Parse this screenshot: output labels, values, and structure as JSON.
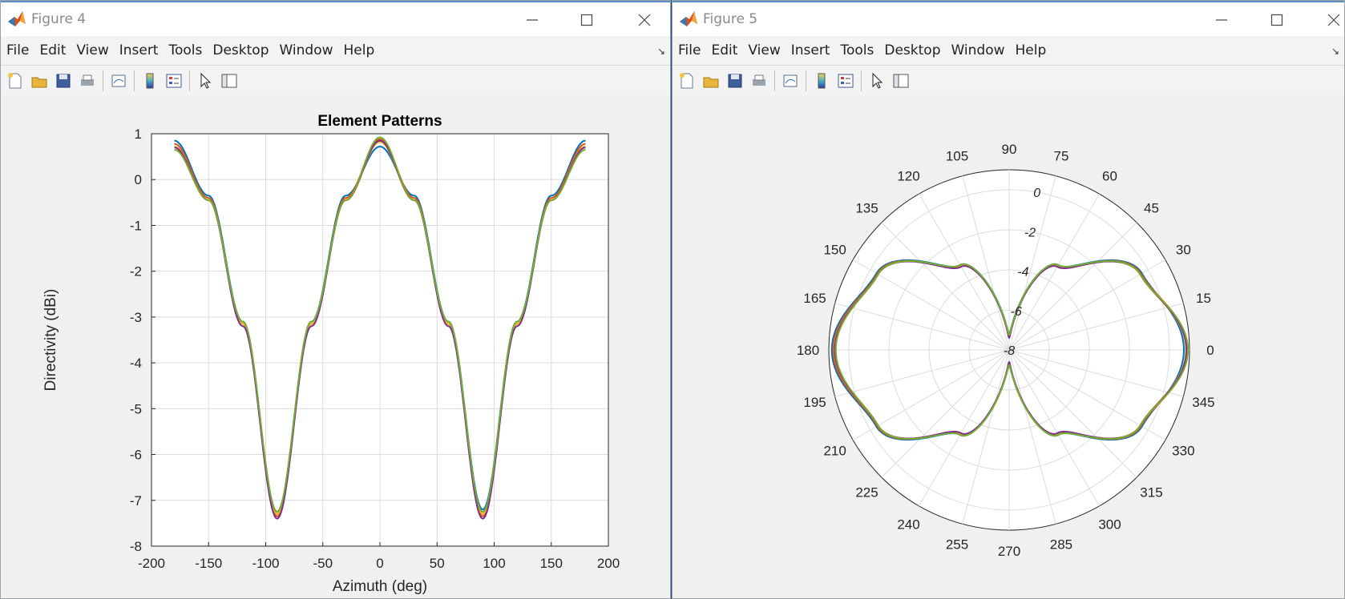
{
  "windows": [
    {
      "title": "Figure 4",
      "menu": [
        "File",
        "Edit",
        "View",
        "Insert",
        "Tools",
        "Desktop",
        "Window",
        "Help"
      ]
    },
    {
      "title": "Figure 5",
      "menu": [
        "File",
        "Edit",
        "View",
        "Insert",
        "Tools",
        "Desktop",
        "Window",
        "Help"
      ]
    }
  ],
  "toolbar_icons": [
    "new-figure-icon",
    "open-file-icon",
    "save-icon",
    "print-icon",
    "link-plot-icon",
    "colorbar-icon",
    "legend-icon",
    "pointer-icon",
    "property-editor-icon"
  ],
  "colors": [
    "#0072BD",
    "#D95319",
    "#EDB120",
    "#7E2F8E",
    "#77AC30"
  ],
  "chart_data": [
    {
      "type": "line",
      "title": "Element Patterns",
      "xlabel": "Azimuth (deg)",
      "ylabel": "Directivity (dBi)",
      "xlim": [
        -200,
        200
      ],
      "ylim": [
        -8,
        1
      ],
      "xticks": [
        "-200",
        "-150",
        "-100",
        "-50",
        "0",
        "50",
        "100",
        "150",
        "200"
      ],
      "yticks": [
        "1",
        "0",
        "-1",
        "-2",
        "-3",
        "-4",
        "-5",
        "-6",
        "-7",
        "-8"
      ],
      "grid": true,
      "x": [
        -180,
        -150,
        -120,
        -90,
        -60,
        -30,
        0,
        30,
        60,
        90,
        120,
        150,
        180
      ],
      "series": [
        {
          "values": [
            0.85,
            -0.35,
            -3.1,
            -7.25,
            -3.1,
            -0.35,
            0.72,
            -0.35,
            -3.1,
            -7.2,
            -3.1,
            -0.35,
            0.85
          ]
        },
        {
          "values": [
            0.78,
            -0.4,
            -3.15,
            -7.35,
            -3.15,
            -0.4,
            0.88,
            -0.4,
            -3.15,
            -7.35,
            -3.15,
            -0.4,
            0.78
          ]
        },
        {
          "values": [
            0.72,
            -0.45,
            -3.15,
            -7.3,
            -3.15,
            -0.45,
            0.82,
            -0.45,
            -3.15,
            -7.3,
            -3.15,
            -0.45,
            0.72
          ]
        },
        {
          "values": [
            0.7,
            -0.45,
            -3.2,
            -7.4,
            -3.2,
            -0.45,
            0.85,
            -0.45,
            -3.2,
            -7.4,
            -3.2,
            -0.45,
            0.7
          ]
        },
        {
          "values": [
            0.65,
            -0.45,
            -3.1,
            -7.25,
            -3.1,
            -0.45,
            0.92,
            -0.45,
            -3.1,
            -7.25,
            -3.1,
            -0.45,
            0.65
          ]
        }
      ]
    },
    {
      "type": "polar",
      "angle_ticks": [
        "0",
        "15",
        "30",
        "45",
        "60",
        "75",
        "90",
        "105",
        "120",
        "135",
        "150",
        "165",
        "180",
        "195",
        "210",
        "225",
        "240",
        "255",
        "270",
        "285",
        "300",
        "315",
        "330",
        "345"
      ],
      "r_ticks": [
        "0",
        "-2",
        "-4",
        "-6",
        "-8"
      ],
      "rlim": [
        -8,
        1
      ],
      "series_from": "chart_data.0"
    }
  ]
}
